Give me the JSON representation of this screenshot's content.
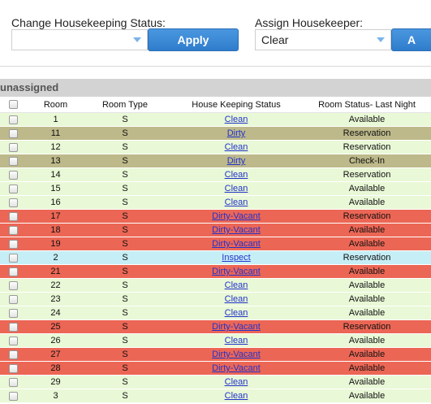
{
  "controls": {
    "change_status_label": "Change Housekeeping Status:",
    "change_status_value": "",
    "apply_label": "Apply",
    "assign_label": "Assign Housekeeper:",
    "assign_value": "Clear",
    "assign_button_label": "A"
  },
  "group": {
    "title": "unassigned"
  },
  "columns": [
    "Room",
    "Room Type",
    "House Keeping Status",
    "Room Status- Last Night"
  ],
  "colors": {
    "clean": "#e9f8d6",
    "dirty": "#bdb98a",
    "dirty_vacant": "#ec6655",
    "inspect": "#c5eef6",
    "header": "#d3d3d3"
  },
  "rows": [
    {
      "room": "1",
      "type": "S",
      "hk": "Clean",
      "status": "Available"
    },
    {
      "room": "11",
      "type": "S",
      "hk": "Dirty",
      "status": "Reservation"
    },
    {
      "room": "12",
      "type": "S",
      "hk": "Clean",
      "status": "Reservation"
    },
    {
      "room": "13",
      "type": "S",
      "hk": "Dirty",
      "status": "Check-In"
    },
    {
      "room": "14",
      "type": "S",
      "hk": "Clean",
      "status": "Reservation"
    },
    {
      "room": "15",
      "type": "S",
      "hk": "Clean",
      "status": "Available"
    },
    {
      "room": "16",
      "type": "S",
      "hk": "Clean",
      "status": "Available"
    },
    {
      "room": "17",
      "type": "S",
      "hk": "Dirty-Vacant",
      "status": "Reservation"
    },
    {
      "room": "18",
      "type": "S",
      "hk": "Dirty-Vacant",
      "status": "Available"
    },
    {
      "room": "19",
      "type": "S",
      "hk": "Dirty-Vacant",
      "status": "Available"
    },
    {
      "room": "2",
      "type": "S",
      "hk": "Inspect",
      "status": "Reservation"
    },
    {
      "room": "21",
      "type": "S",
      "hk": "Dirty-Vacant",
      "status": "Available"
    },
    {
      "room": "22",
      "type": "S",
      "hk": "Clean",
      "status": "Available"
    },
    {
      "room": "23",
      "type": "S",
      "hk": "Clean",
      "status": "Available"
    },
    {
      "room": "24",
      "type": "S",
      "hk": "Clean",
      "status": "Available"
    },
    {
      "room": "25",
      "type": "S",
      "hk": "Dirty-Vacant",
      "status": "Reservation"
    },
    {
      "room": "26",
      "type": "S",
      "hk": "Clean",
      "status": "Available"
    },
    {
      "room": "27",
      "type": "S",
      "hk": "Dirty-Vacant",
      "status": "Available"
    },
    {
      "room": "28",
      "type": "S",
      "hk": "Dirty-Vacant",
      "status": "Available"
    },
    {
      "room": "29",
      "type": "S",
      "hk": "Clean",
      "status": "Available"
    },
    {
      "room": "3",
      "type": "S",
      "hk": "Clean",
      "status": "Available"
    }
  ]
}
